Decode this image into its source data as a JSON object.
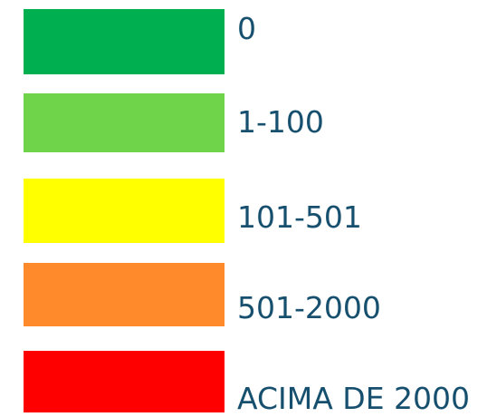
{
  "legend": {
    "items": [
      {
        "label": "0",
        "color": "#00b050"
      },
      {
        "label": "1-100",
        "color": "#70d44a"
      },
      {
        "label": "101-501",
        "color": "#ffff00"
      },
      {
        "label": "501-2000",
        "color": "#ff8a2b"
      },
      {
        "label": "ACIMA DE 2000",
        "color": "#ff0000"
      }
    ]
  }
}
